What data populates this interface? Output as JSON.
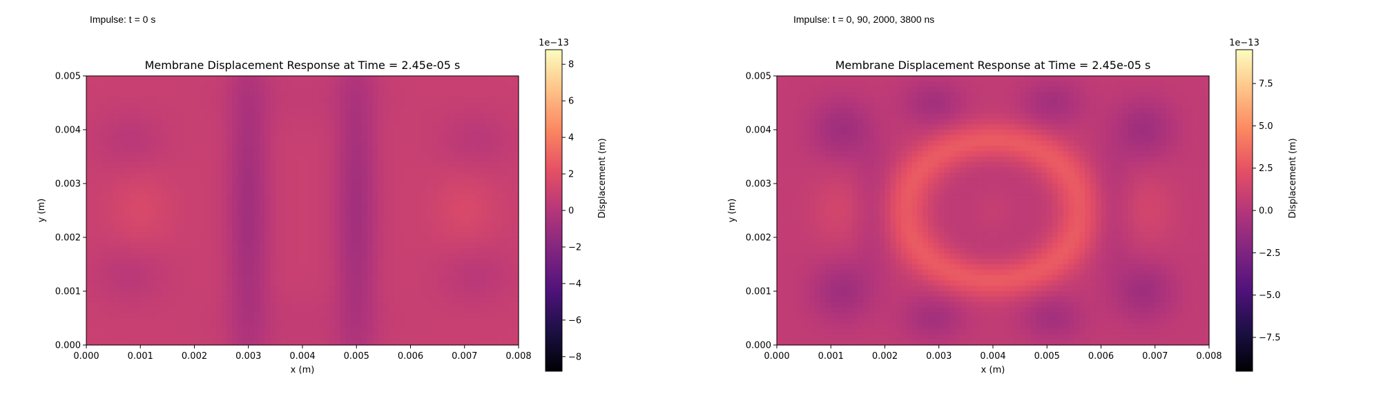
{
  "captions": {
    "left": "Impulse: t = 0 s",
    "right": "Impulse: t = 0, 90, 2000, 3800 ns"
  },
  "colormap": {
    "name": "magma",
    "stops": [
      "#000004",
      "#1c1044",
      "#4f127b",
      "#812581",
      "#b5367a",
      "#e55064",
      "#fb8761",
      "#fec287",
      "#fcfdbf"
    ]
  },
  "chart_data": [
    {
      "type": "heatmap",
      "title": "Membrane Displacement Response at Time = 2.45e-05 s",
      "xlabel": "x (m)",
      "ylabel": "y (m)",
      "xlim": [
        0,
        0.008
      ],
      "ylim": [
        0,
        0.005
      ],
      "xticks": [
        "0.000",
        "0.001",
        "0.002",
        "0.003",
        "0.004",
        "0.005",
        "0.006",
        "0.007",
        "0.008"
      ],
      "yticks": [
        "0.000",
        "0.001",
        "0.002",
        "0.003",
        "0.004",
        "0.005"
      ],
      "colorbar": {
        "label": "Displacement (m)",
        "offset": "1e−13",
        "range": [
          -8.8,
          8.8
        ],
        "ticks": [
          -8,
          -6,
          -4,
          -2,
          0,
          2,
          4,
          6,
          8
        ],
        "ticklabels": [
          "−8",
          "−6",
          "−4",
          "−2",
          "0",
          "2",
          "4",
          "6",
          "8"
        ]
      },
      "field": {
        "base": 0.9,
        "features": [
          {
            "x": 0.003,
            "y": 0.0025,
            "sx": 0.00028,
            "sy": 0.0022,
            "amp": -1.7
          },
          {
            "x": 0.005,
            "y": 0.0025,
            "sx": 0.00028,
            "sy": 0.0022,
            "amp": -1.7
          },
          {
            "x": 0.001,
            "y": 0.0025,
            "sx": 0.0004,
            "sy": 0.0005,
            "amp": 0.7
          },
          {
            "x": 0.007,
            "y": 0.0025,
            "sx": 0.0004,
            "sy": 0.0005,
            "amp": 0.7
          },
          {
            "x": 0.0008,
            "y": 0.0038,
            "sx": 0.0005,
            "sy": 0.0004,
            "amp": -0.7
          },
          {
            "x": 0.0008,
            "y": 0.0013,
            "sx": 0.0005,
            "sy": 0.0004,
            "amp": -0.7
          },
          {
            "x": 0.0072,
            "y": 0.0038,
            "sx": 0.0005,
            "sy": 0.0004,
            "amp": -0.7
          },
          {
            "x": 0.0072,
            "y": 0.0013,
            "sx": 0.0005,
            "sy": 0.0004,
            "amp": -0.7
          },
          {
            "x": 0.004,
            "y": 0.0046,
            "sx": 0.0012,
            "sy": 0.0004,
            "amp": -0.3
          },
          {
            "x": 0.004,
            "y": 0.0004,
            "sx": 0.0012,
            "sy": 0.0004,
            "amp": -0.3
          }
        ]
      }
    },
    {
      "type": "heatmap",
      "title": "Membrane Displacement Response at Time = 2.45e-05 s",
      "xlabel": "x (m)",
      "ylabel": "y (m)",
      "xlim": [
        0,
        0.008
      ],
      "ylim": [
        0,
        0.005
      ],
      "xticks": [
        "0.000",
        "0.001",
        "0.002",
        "0.003",
        "0.004",
        "0.005",
        "0.006",
        "0.007",
        "0.008"
      ],
      "yticks": [
        "0.000",
        "0.001",
        "0.002",
        "0.003",
        "0.004",
        "0.005"
      ],
      "colorbar": {
        "label": "Displacement (m)",
        "offset": "1e−13",
        "range": [
          -9.5,
          9.5
        ],
        "ticks": [
          -7.5,
          -5.0,
          -2.5,
          0.0,
          2.5,
          5.0,
          7.5
        ],
        "ticklabels": [
          "−7.5",
          "−5.0",
          "−2.5",
          "0.0",
          "2.5",
          "5.0",
          "7.5"
        ]
      },
      "field": {
        "base": 0.6,
        "features": [
          {
            "x": 0.004,
            "y": 0.0025,
            "sx": 0.0016,
            "sy": 0.0012,
            "amp": 2.3,
            "ring": 0.0013
          },
          {
            "x": 0.004,
            "y": 0.0025,
            "sx": 0.0006,
            "sy": 0.0006,
            "amp": -0.6
          },
          {
            "x": 0.004,
            "y": 0.0025,
            "sx": 0.00035,
            "sy": 0.00035,
            "amp": 0.8
          },
          {
            "x": 0.0012,
            "y": 0.004,
            "sx": 0.0004,
            "sy": 0.0004,
            "amp": -1.6
          },
          {
            "x": 0.0012,
            "y": 0.001,
            "sx": 0.0004,
            "sy": 0.0004,
            "amp": -1.6
          },
          {
            "x": 0.0068,
            "y": 0.004,
            "sx": 0.0004,
            "sy": 0.0004,
            "amp": -1.6
          },
          {
            "x": 0.0068,
            "y": 0.001,
            "sx": 0.0004,
            "sy": 0.0004,
            "amp": -1.6
          },
          {
            "x": 0.0029,
            "y": 0.0045,
            "sx": 0.0004,
            "sy": 0.0003,
            "amp": -1.4
          },
          {
            "x": 0.0051,
            "y": 0.0045,
            "sx": 0.0004,
            "sy": 0.0003,
            "amp": -1.4
          },
          {
            "x": 0.0029,
            "y": 0.0005,
            "sx": 0.0004,
            "sy": 0.0003,
            "amp": -1.4
          },
          {
            "x": 0.0051,
            "y": 0.0005,
            "sx": 0.0004,
            "sy": 0.0003,
            "amp": -1.4
          },
          {
            "x": 0.0012,
            "y": 0.0025,
            "sx": 0.0004,
            "sy": 0.0005,
            "amp": 0.9
          },
          {
            "x": 0.0068,
            "y": 0.0025,
            "sx": 0.0004,
            "sy": 0.0005,
            "amp": 0.9
          },
          {
            "x": 0.0018,
            "y": 0.0025,
            "sx": 0.0003,
            "sy": 0.0008,
            "amp": -0.9
          },
          {
            "x": 0.0062,
            "y": 0.0025,
            "sx": 0.0003,
            "sy": 0.0008,
            "amp": -0.9
          }
        ]
      }
    }
  ]
}
